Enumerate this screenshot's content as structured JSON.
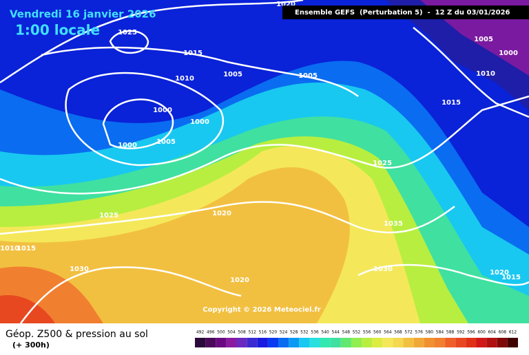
{
  "header": {
    "date": "Vendredi 16 janvier 2026",
    "time": "1:00 locale",
    "model": "Ensemble GEFS  (Perturbation 5)  -  12 Z du 03/01/2026"
  },
  "isobar_labels": [
    "1020",
    "1025",
    "1015",
    "1005",
    "1010",
    "1005",
    "1000",
    "1000",
    "1005",
    "1000",
    "1025",
    "1025",
    "1020",
    "1035",
    "1015",
    "1010",
    "1005",
    "1000",
    "1030",
    "1020",
    "1030",
    "1020",
    "1015",
    "1010",
    "1015"
  ],
  "copyright": "Copyright © 2026 Meteociel.fr",
  "legend": {
    "title": "Géop. Z500 & pression au sol",
    "range": "(+ 300h)",
    "scale": [
      492,
      496,
      500,
      504,
      508,
      512,
      516,
      520,
      524,
      528,
      532,
      536,
      540,
      544,
      548,
      552,
      556,
      560,
      564,
      568,
      572,
      576,
      580,
      584,
      588,
      592,
      596,
      600,
      604,
      608,
      612
    ]
  }
}
